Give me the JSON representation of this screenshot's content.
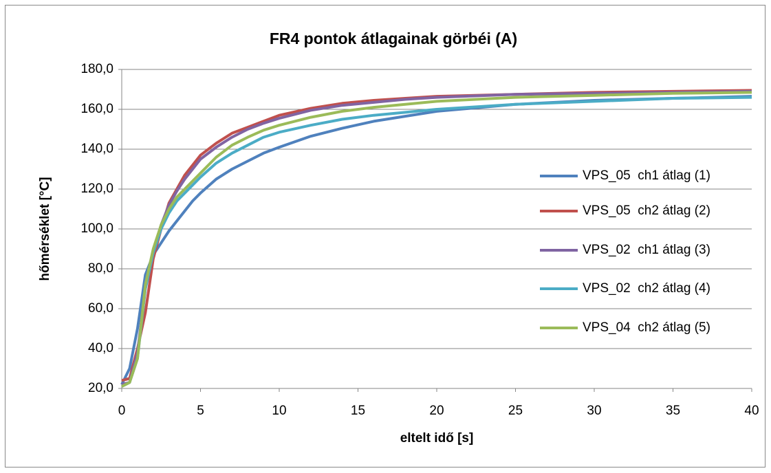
{
  "chart_data": {
    "type": "line",
    "title": "FR4 pontok átlagainak görbéi (A)",
    "x_label": "eltelt idő [s]",
    "y_label": "hőmérséklet [°C]",
    "x": [
      0,
      0.5,
      1,
      1.5,
      2,
      2.5,
      3,
      3.5,
      4,
      4.5,
      5,
      6,
      7,
      8,
      9,
      10,
      12,
      14,
      16,
      18,
      20,
      25,
      30,
      35,
      40
    ],
    "series": [
      {
        "name": "VPS_05  ch1 átlag (1)",
        "color": "#4F81BD",
        "values": [
          22,
          30,
          50,
          77,
          87,
          93,
          99,
          104,
          109,
          114,
          118,
          125,
          130,
          134,
          138,
          141,
          146.5,
          150.5,
          154,
          156.5,
          159,
          162.5,
          164.5,
          165.5,
          166.5
        ]
      },
      {
        "name": "VPS_05  ch2 átlag (2)",
        "color": "#C0504D",
        "values": [
          24,
          25,
          40,
          58,
          85,
          100,
          113,
          120,
          127,
          132,
          137,
          143,
          148,
          151,
          154,
          157,
          160.5,
          163,
          164.5,
          165.5,
          166.5,
          167.5,
          168.5,
          169,
          169.5
        ]
      },
      {
        "name": "VPS_02  ch1 átlag (3)",
        "color": "#8064A2",
        "values": [
          22,
          23,
          38,
          70,
          88,
          102,
          112,
          119,
          125,
          130,
          135,
          141,
          146,
          150,
          153,
          155.5,
          159.5,
          162,
          163.5,
          165,
          166,
          167.5,
          168,
          168.5,
          169
        ]
      },
      {
        "name": "VPS_02  ch2 átlag (4)",
        "color": "#4BACC6",
        "values": [
          21,
          23,
          35,
          70,
          88,
          100,
          108,
          114,
          118,
          122,
          126,
          133,
          138,
          142,
          146,
          148.5,
          152,
          155,
          157,
          158.5,
          160,
          162.5,
          164,
          165.5,
          166
        ]
      },
      {
        "name": "VPS_04  ch2 átlag (5)",
        "color": "#9BBB59",
        "values": [
          21,
          23,
          35,
          72,
          90,
          102,
          110,
          116,
          120,
          124,
          128,
          136,
          142,
          146,
          149.5,
          152,
          156,
          159,
          161,
          162.5,
          164,
          166,
          167,
          168,
          168.5
        ]
      }
    ],
    "xlim": [
      0,
      40
    ],
    "xticks": [
      0,
      5,
      10,
      15,
      20,
      25,
      30,
      35,
      40
    ],
    "ylim": [
      20,
      180
    ],
    "yticks": [
      {
        "value": 20,
        "label": "20,0"
      },
      {
        "value": 40,
        "label": "40,0"
      },
      {
        "value": 60,
        "label": "60,0"
      },
      {
        "value": 80,
        "label": "80,0"
      },
      {
        "value": 100,
        "label": "100,0"
      },
      {
        "value": 120,
        "label": "120,0"
      },
      {
        "value": 140,
        "label": "140,0"
      },
      {
        "value": 160,
        "label": "160,0"
      },
      {
        "value": 180,
        "label": "180,0"
      }
    ],
    "grid": true,
    "legend": "right"
  }
}
